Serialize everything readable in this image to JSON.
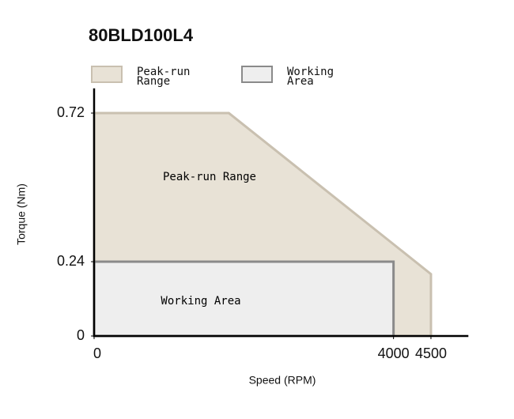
{
  "chart_data": {
    "type": "area",
    "title": "80BLD100L4",
    "x_label": "Speed (RPM)",
    "y_label": "Torque (Nm)",
    "xlim": [
      0,
      5000
    ],
    "ylim": [
      0,
      0.8
    ],
    "xticks": [
      0,
      4000,
      4500
    ],
    "yticks": [
      0,
      0.24,
      0.72
    ],
    "series": [
      {
        "name": "Peak-run Range",
        "color": "#e8e2d6",
        "edge_color": "#c9c0b0",
        "x": [
          0,
          1800,
          4500,
          4500,
          0
        ],
        "values": [
          0.72,
          0.72,
          0.2,
          0,
          0
        ]
      },
      {
        "name": "Working Area",
        "color": "#eeeeee",
        "edge_color": "#8a8a8a",
        "x": [
          0,
          4000,
          4000,
          0
        ],
        "values": [
          0.24,
          0.24,
          0,
          0
        ]
      }
    ]
  }
}
